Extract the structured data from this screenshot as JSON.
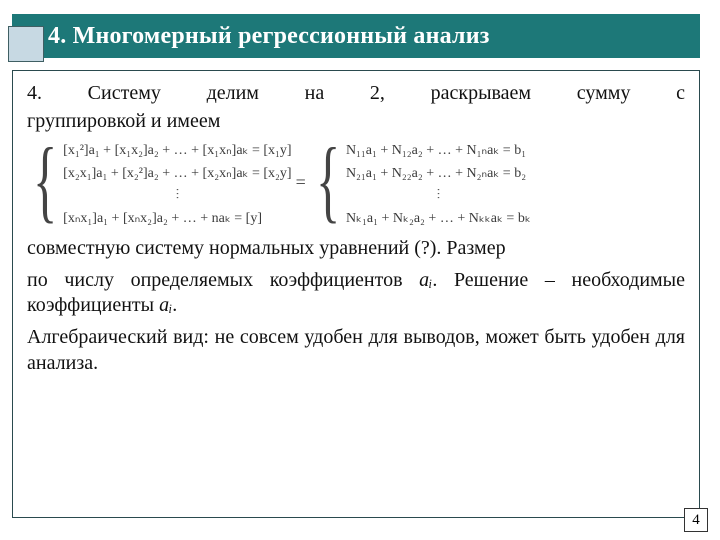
{
  "title": "4. Многомерный регрессионный анализ",
  "intro_line1": "4. Систему делим на 2, раскрываем сумму с",
  "intro_line2": "группировкой и имеем",
  "left_system": {
    "row1": "[x₁²]a₁ + [x₁x₂]a₂ + … + [x₁xₙ]aₖ = [x₁y]",
    "row2": "[x₂x₁]a₁ + [x₂²]a₂ + … + [x₂xₙ]aₖ = [x₂y]",
    "dots": "⫶",
    "row3": "[xₙx₁]a₁ + [xₙx₂]a₂ + … + naₖ = [y]"
  },
  "right_system": {
    "row1": "N₁₁a₁ + N₁₂a₂ + … + N₁ₙaₖ = b₁",
    "row2": "N₂₁a₁ + N₂₂a₂ + … + N₂ₙaₖ = b₂",
    "dots": "⫶",
    "row3": "Nₖ₁a₁ + Nₖ₂a₂ + … + Nₖₖaₖ = bₖ"
  },
  "eq_sign": "=",
  "para_after1": "совместную систему нормальных уравнений (?). Размер",
  "para_after2_a": "по числу определяемых коэффициентов ",
  "para_after2_ai": "aᵢ",
  "para_after2_b": ". Решение – необходимые коэффициенты ",
  "para_after2_ai2": "aᵢ",
  "para_after2_c": ".",
  "para_after3": "Алгебраический вид: не совсем удобен для выводов, может быть удобен для анализа.",
  "page_number": "4",
  "colors": {
    "title_bg": "#1d7878",
    "title_fg": "#ffffff",
    "corner_fill": "#c7d9e3",
    "corner_border": "#3f5f63",
    "content_border": "#2a4a4e",
    "text": "#111111",
    "math_text": "#3a3a3a",
    "background": "#ffffff"
  },
  "layout": {
    "slide_w": 720,
    "slide_h": 540,
    "title_h": 44,
    "corner_size": 36,
    "body_font_pt": 20,
    "math_font_pt": 14
  }
}
